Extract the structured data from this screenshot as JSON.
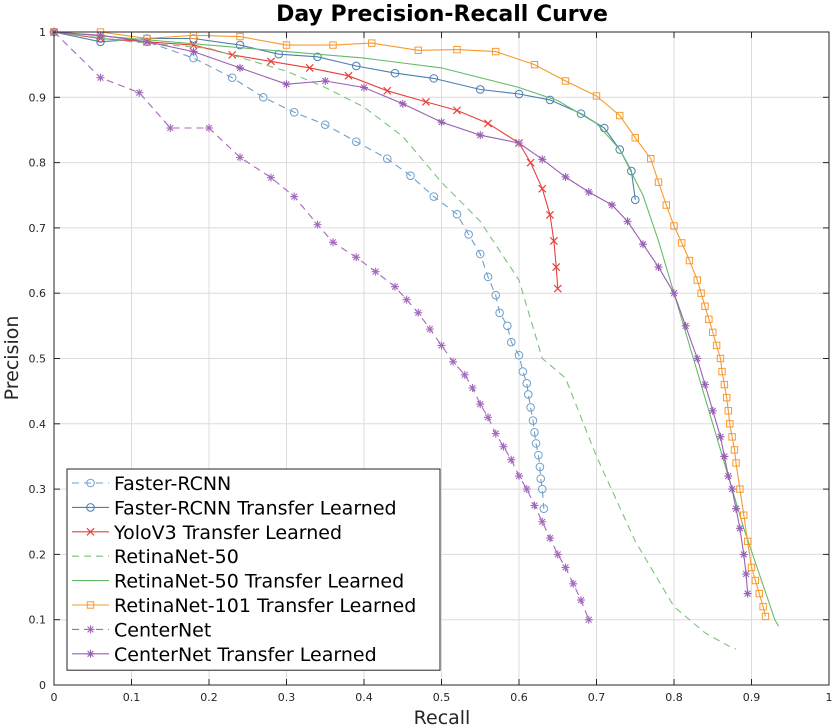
{
  "chart_data": {
    "type": "line",
    "title": "Day Precision-Recall Curve",
    "xlabel": "Recall",
    "ylabel": "Precision",
    "xlim": [
      0,
      1
    ],
    "ylim": [
      0,
      1
    ],
    "grid": true,
    "legend_position": "bottom-left",
    "xticks": [
      "0",
      "0.1",
      "0.2",
      "0.3",
      "0.4",
      "0.5",
      "0.6",
      "0.7",
      "0.8",
      "0.9",
      "1"
    ],
    "yticks": [
      "0",
      "0.1",
      "0.2",
      "0.3",
      "0.4",
      "0.5",
      "0.6",
      "0.7",
      "0.8",
      "0.9",
      "1"
    ],
    "series": [
      {
        "name": "Faster-RCNN",
        "color": "#6f9fcc",
        "dash": "dashed",
        "marker": "circle",
        "x": [
          0,
          0.06,
          0.12,
          0.18,
          0.23,
          0.27,
          0.31,
          0.35,
          0.39,
          0.43,
          0.46,
          0.49,
          0.52,
          0.535,
          0.55,
          0.56,
          0.57,
          0.575,
          0.585,
          0.59,
          0.6,
          0.605,
          0.61,
          0.612,
          0.615,
          0.618,
          0.62,
          0.622,
          0.625,
          0.627,
          0.628,
          0.63,
          0.632
        ],
        "y": [
          1,
          0.99,
          0.985,
          0.96,
          0.93,
          0.9,
          0.877,
          0.858,
          0.832,
          0.806,
          0.78,
          0.748,
          0.721,
          0.69,
          0.66,
          0.625,
          0.597,
          0.57,
          0.55,
          0.525,
          0.505,
          0.48,
          0.462,
          0.445,
          0.425,
          0.405,
          0.387,
          0.37,
          0.352,
          0.334,
          0.316,
          0.3,
          0.27
        ]
      },
      {
        "name": "Faster-RCNN Transfer Learned",
        "color": "#4a7fb0",
        "dash": "solid",
        "marker": "circle",
        "x": [
          0,
          0.06,
          0.12,
          0.18,
          0.24,
          0.29,
          0.34,
          0.39,
          0.44,
          0.49,
          0.55,
          0.6,
          0.64,
          0.68,
          0.71,
          0.73,
          0.745,
          0.75
        ],
        "y": [
          1,
          0.985,
          0.99,
          0.99,
          0.98,
          0.966,
          0.962,
          0.948,
          0.937,
          0.929,
          0.912,
          0.905,
          0.896,
          0.875,
          0.853,
          0.82,
          0.787,
          0.743
        ]
      },
      {
        "name": "YoloV3 Transfer Learned",
        "color": "#e8403a",
        "dash": "solid",
        "marker": "x",
        "x": [
          0,
          0.06,
          0.12,
          0.18,
          0.23,
          0.28,
          0.33,
          0.38,
          0.43,
          0.48,
          0.52,
          0.56,
          0.6,
          0.615,
          0.63,
          0.64,
          0.645,
          0.648,
          0.65
        ],
        "y": [
          1,
          0.99,
          0.985,
          0.98,
          0.965,
          0.955,
          0.945,
          0.933,
          0.91,
          0.893,
          0.88,
          0.86,
          0.83,
          0.8,
          0.76,
          0.72,
          0.68,
          0.64,
          0.607
        ]
      },
      {
        "name": "RetinaNet-50",
        "color": "#7ac47a",
        "dash": "dashed",
        "marker": "none",
        "x": [
          0,
          0.1,
          0.2,
          0.3,
          0.35,
          0.4,
          0.45,
          0.5,
          0.55,
          0.6,
          0.63,
          0.66,
          0.7,
          0.75,
          0.8,
          0.84,
          0.87,
          0.88
        ],
        "y": [
          1,
          0.985,
          0.975,
          0.94,
          0.915,
          0.885,
          0.84,
          0.77,
          0.71,
          0.62,
          0.5,
          0.47,
          0.35,
          0.22,
          0.12,
          0.08,
          0.06,
          0.055
        ]
      },
      {
        "name": "RetinaNet-50 Transfer Learned",
        "color": "#66bb66",
        "dash": "solid",
        "marker": "none",
        "x": [
          0,
          0.1,
          0.2,
          0.3,
          0.4,
          0.5,
          0.6,
          0.65,
          0.7,
          0.73,
          0.76,
          0.78,
          0.8,
          0.82,
          0.84,
          0.86,
          0.875,
          0.89,
          0.91,
          0.93,
          0.935
        ],
        "y": [
          1,
          0.99,
          0.98,
          0.97,
          0.96,
          0.945,
          0.915,
          0.895,
          0.86,
          0.82,
          0.75,
          0.68,
          0.6,
          0.52,
          0.44,
          0.36,
          0.3,
          0.24,
          0.17,
          0.1,
          0.09
        ]
      },
      {
        "name": "RetinaNet-101 Transfer Learned",
        "color": "#f79a2e",
        "dash": "solid",
        "marker": "square",
        "x": [
          0,
          0.06,
          0.12,
          0.18,
          0.24,
          0.3,
          0.36,
          0.41,
          0.47,
          0.52,
          0.57,
          0.62,
          0.66,
          0.7,
          0.73,
          0.75,
          0.77,
          0.78,
          0.79,
          0.8,
          0.81,
          0.82,
          0.83,
          0.835,
          0.84,
          0.845,
          0.85,
          0.855,
          0.86,
          0.862,
          0.865,
          0.868,
          0.87,
          0.872,
          0.875,
          0.878,
          0.88,
          0.885,
          0.89,
          0.895,
          0.9,
          0.905,
          0.91,
          0.915,
          0.918
        ],
        "y": [
          1,
          1,
          0.99,
          0.995,
          0.993,
          0.98,
          0.98,
          0.983,
          0.972,
          0.973,
          0.97,
          0.95,
          0.925,
          0.902,
          0.872,
          0.838,
          0.806,
          0.77,
          0.735,
          0.703,
          0.677,
          0.65,
          0.62,
          0.6,
          0.58,
          0.56,
          0.54,
          0.52,
          0.5,
          0.48,
          0.46,
          0.44,
          0.42,
          0.4,
          0.38,
          0.36,
          0.34,
          0.3,
          0.26,
          0.22,
          0.18,
          0.16,
          0.14,
          0.12,
          0.105
        ]
      },
      {
        "name": "CenterNet",
        "color": "#a569bd",
        "dash": "dashed",
        "marker": "asterisk",
        "x": [
          0,
          0.06,
          0.11,
          0.15,
          0.2,
          0.24,
          0.28,
          0.31,
          0.34,
          0.36,
          0.39,
          0.415,
          0.44,
          0.455,
          0.47,
          0.485,
          0.5,
          0.515,
          0.53,
          0.54,
          0.55,
          0.56,
          0.57,
          0.58,
          0.59,
          0.6,
          0.61,
          0.62,
          0.63,
          0.64,
          0.65,
          0.66,
          0.67,
          0.68,
          0.69
        ],
        "y": [
          1,
          0.93,
          0.907,
          0.853,
          0.853,
          0.808,
          0.777,
          0.748,
          0.705,
          0.678,
          0.655,
          0.633,
          0.61,
          0.59,
          0.57,
          0.545,
          0.52,
          0.495,
          0.475,
          0.455,
          0.43,
          0.41,
          0.385,
          0.365,
          0.345,
          0.32,
          0.3,
          0.275,
          0.25,
          0.225,
          0.2,
          0.18,
          0.155,
          0.13,
          0.1
        ]
      },
      {
        "name": "CenterNet Transfer Learned",
        "color": "#9a5fb5",
        "dash": "solid",
        "marker": "asterisk",
        "x": [
          0,
          0.06,
          0.12,
          0.18,
          0.24,
          0.3,
          0.35,
          0.4,
          0.45,
          0.5,
          0.55,
          0.6,
          0.63,
          0.66,
          0.69,
          0.72,
          0.74,
          0.76,
          0.78,
          0.8,
          0.815,
          0.83,
          0.84,
          0.85,
          0.86,
          0.865,
          0.87,
          0.875,
          0.88,
          0.885,
          0.89,
          0.893,
          0.895
        ],
        "y": [
          1,
          0.995,
          0.985,
          0.97,
          0.945,
          0.92,
          0.925,
          0.915,
          0.89,
          0.862,
          0.842,
          0.83,
          0.805,
          0.778,
          0.755,
          0.735,
          0.71,
          0.675,
          0.64,
          0.6,
          0.55,
          0.5,
          0.46,
          0.42,
          0.38,
          0.35,
          0.32,
          0.3,
          0.27,
          0.24,
          0.2,
          0.17,
          0.14
        ]
      }
    ]
  }
}
